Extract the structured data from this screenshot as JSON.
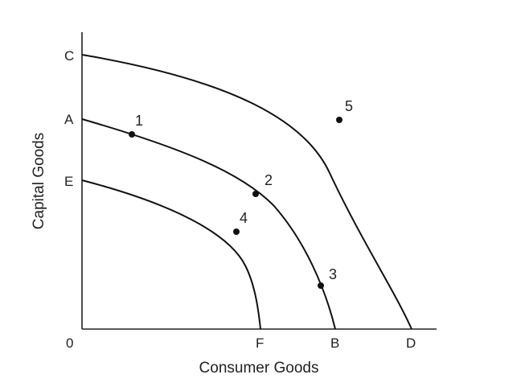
{
  "x_axis_title": "Consumer Goods",
  "y_axis_title": "Capital Goods",
  "origin_label": "0",
  "y_axis_labels": {
    "c": "C",
    "a": "A",
    "e": "E"
  },
  "x_axis_labels": {
    "f": "F",
    "b": "B",
    "d": "D"
  },
  "curves": [
    {
      "name": "curve-cd",
      "from": "C",
      "to": "D"
    },
    {
      "name": "curve-ab",
      "from": "A",
      "to": "B"
    },
    {
      "name": "curve-ef",
      "from": "E",
      "to": "F"
    }
  ],
  "points": [
    {
      "label": "1",
      "lies_on": "curve A-B"
    },
    {
      "label": "2",
      "lies_on": "curve A-B"
    },
    {
      "label": "3",
      "lies_on": "curve A-B"
    },
    {
      "label": "4",
      "lies_on": "between curves E-F and A-B"
    },
    {
      "label": "5",
      "lies_on": "between curves A-B and C-D"
    }
  ]
}
